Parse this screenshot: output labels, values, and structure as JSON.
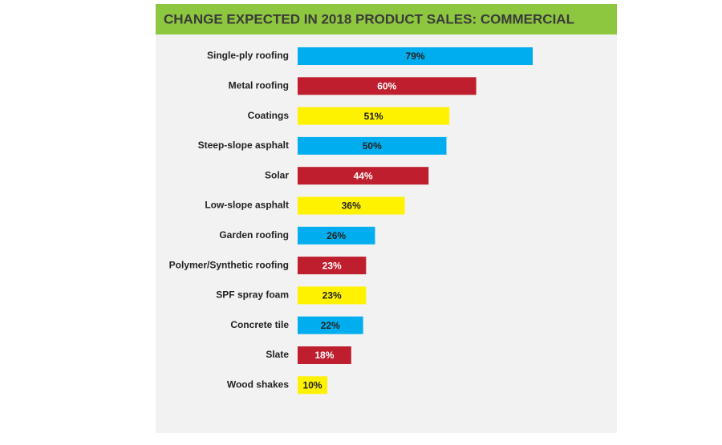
{
  "chart_data": {
    "type": "hbar",
    "title": "CHANGE EXPECTED IN 2018 PRODUCT SALES: COMMERCIAL",
    "categories": [
      "Single-ply roofing",
      "Metal roofing",
      "Coatings",
      "Steep-slope asphalt",
      "Solar",
      "Low-slope asphalt",
      "Garden roofing",
      "Polymer/Synthetic roofing",
      "SPF spray foam",
      "Concrete tile",
      "Slate",
      "Wood shakes"
    ],
    "values": [
      79,
      60,
      51,
      50,
      44,
      36,
      26,
      23,
      23,
      22,
      18,
      10
    ],
    "value_labels": [
      "79%",
      "60%",
      "51%",
      "50%",
      "44%",
      "36%",
      "26%",
      "23%",
      "23%",
      "22%",
      "18%",
      "10%"
    ],
    "colors": [
      "#00aeef",
      "#be1e2d",
      "#fff200",
      "#00aeef",
      "#be1e2d",
      "#fff200",
      "#00aeef",
      "#be1e2d",
      "#fff200",
      "#00aeef",
      "#be1e2d",
      "#fff200"
    ]
  }
}
